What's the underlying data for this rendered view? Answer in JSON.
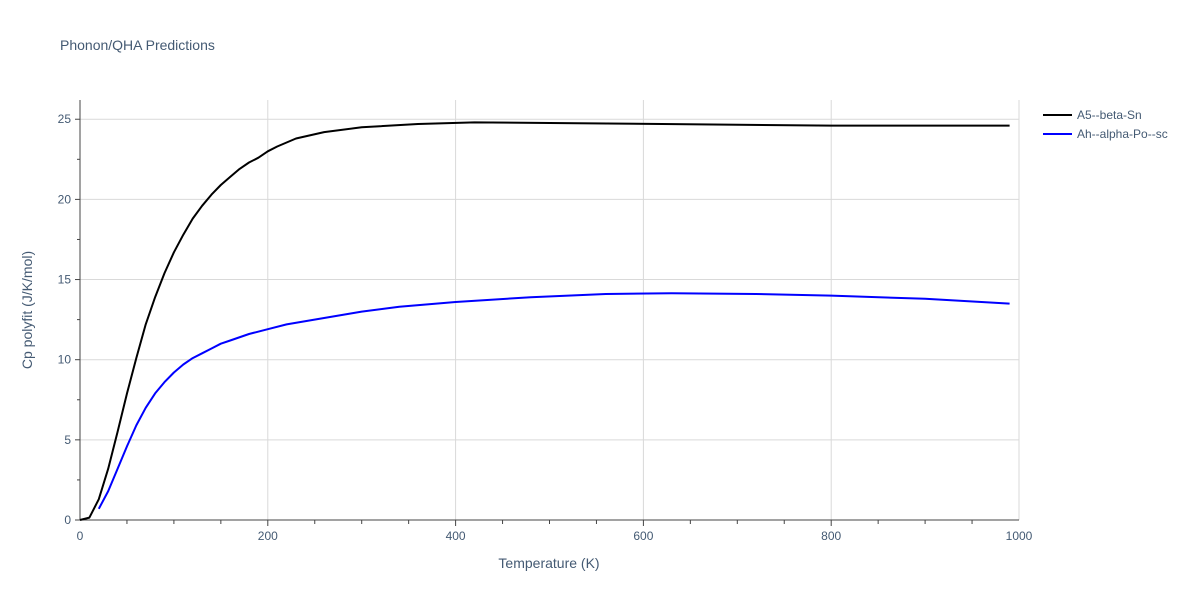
{
  "chart_data": {
    "type": "line",
    "title": "Phonon/QHA Predictions",
    "xlabel": "Temperature (K)",
    "ylabel": "Cp polyfit (J/K/mol)",
    "xlim": [
      0,
      1000
    ],
    "ylim": [
      0,
      26.2
    ],
    "xticks": [
      0,
      200,
      400,
      600,
      800,
      1000
    ],
    "yticks": [
      0,
      5,
      10,
      15,
      20,
      25
    ],
    "grid": true,
    "legend_position": "top-right",
    "series": [
      {
        "name": "A5--beta-Sn",
        "color": "#000000",
        "x": [
          0,
          10,
          20,
          30,
          40,
          50,
          60,
          70,
          80,
          90,
          100,
          110,
          120,
          130,
          140,
          150,
          160,
          170,
          180,
          190,
          200,
          210,
          230,
          260,
          300,
          360,
          420,
          530,
          620,
          800,
          990
        ],
        "y": [
          0,
          0.15,
          1.3,
          3.2,
          5.5,
          7.9,
          10.1,
          12.2,
          13.9,
          15.4,
          16.7,
          17.8,
          18.8,
          19.6,
          20.3,
          20.9,
          21.4,
          21.9,
          22.3,
          22.6,
          23.0,
          23.3,
          23.8,
          24.2,
          24.5,
          24.7,
          24.8,
          24.75,
          24.7,
          24.6,
          24.6
        ]
      },
      {
        "name": "Ah--alpha-Po--sc",
        "color": "#0000ff",
        "x": [
          20,
          30,
          40,
          50,
          60,
          70,
          80,
          90,
          100,
          110,
          120,
          130,
          140,
          150,
          160,
          180,
          200,
          220,
          260,
          300,
          340,
          400,
          480,
          560,
          630,
          720,
          800,
          900,
          990
        ],
        "y": [
          0.7,
          1.8,
          3.2,
          4.6,
          5.9,
          7.0,
          7.9,
          8.6,
          9.2,
          9.7,
          10.1,
          10.4,
          10.7,
          11.0,
          11.2,
          11.6,
          11.9,
          12.2,
          12.6,
          13.0,
          13.3,
          13.6,
          13.9,
          14.1,
          14.15,
          14.1,
          14.0,
          13.8,
          13.5
        ]
      }
    ]
  }
}
